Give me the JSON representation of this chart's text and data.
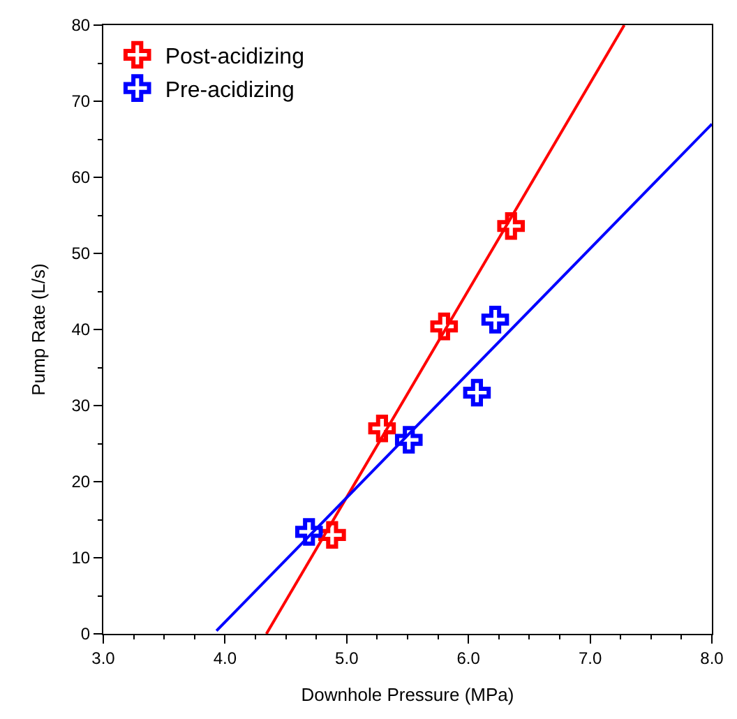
{
  "chart_data": {
    "type": "scatter",
    "xlabel": "Downhole Pressure (MPa)",
    "ylabel": "Pump Rate (L/s)",
    "xlim": [
      3,
      8
    ],
    "ylim": [
      0,
      80
    ],
    "xticks": [
      {
        "value": 3,
        "label": "3.0"
      },
      {
        "value": 4,
        "label": "4.0"
      },
      {
        "value": 5,
        "label": "5.0"
      },
      {
        "value": 6,
        "label": "6.0"
      },
      {
        "value": 7,
        "label": "7.0"
      },
      {
        "value": 8,
        "label": "8.0"
      }
    ],
    "yticks": [
      0,
      10,
      20,
      30,
      40,
      50,
      60,
      70,
      80
    ],
    "legend": "top left",
    "series": [
      {
        "name": "Post-acidizing",
        "marker": "cross",
        "color": "#ff0000",
        "x": [
          4.88,
          5.29,
          5.8,
          6.35
        ],
        "values": [
          13.0,
          27.0,
          40.4,
          53.6
        ]
      },
      {
        "name": "Pre-acidizing",
        "marker": "cross",
        "color": "#0000ff",
        "x": [
          4.69,
          5.51,
          6.07,
          6.22
        ],
        "values": [
          13.4,
          25.5,
          31.7,
          41.3
        ]
      },
      {
        "type": "line",
        "marker": "none",
        "color": "#ff0000",
        "x": [
          4.34,
          7.28
        ],
        "values": [
          0,
          80
        ]
      },
      {
        "type": "line",
        "marker": "none",
        "color": "#0000ff",
        "x": [
          3.93,
          8.0
        ],
        "values": [
          0.4,
          67.0
        ]
      }
    ]
  }
}
